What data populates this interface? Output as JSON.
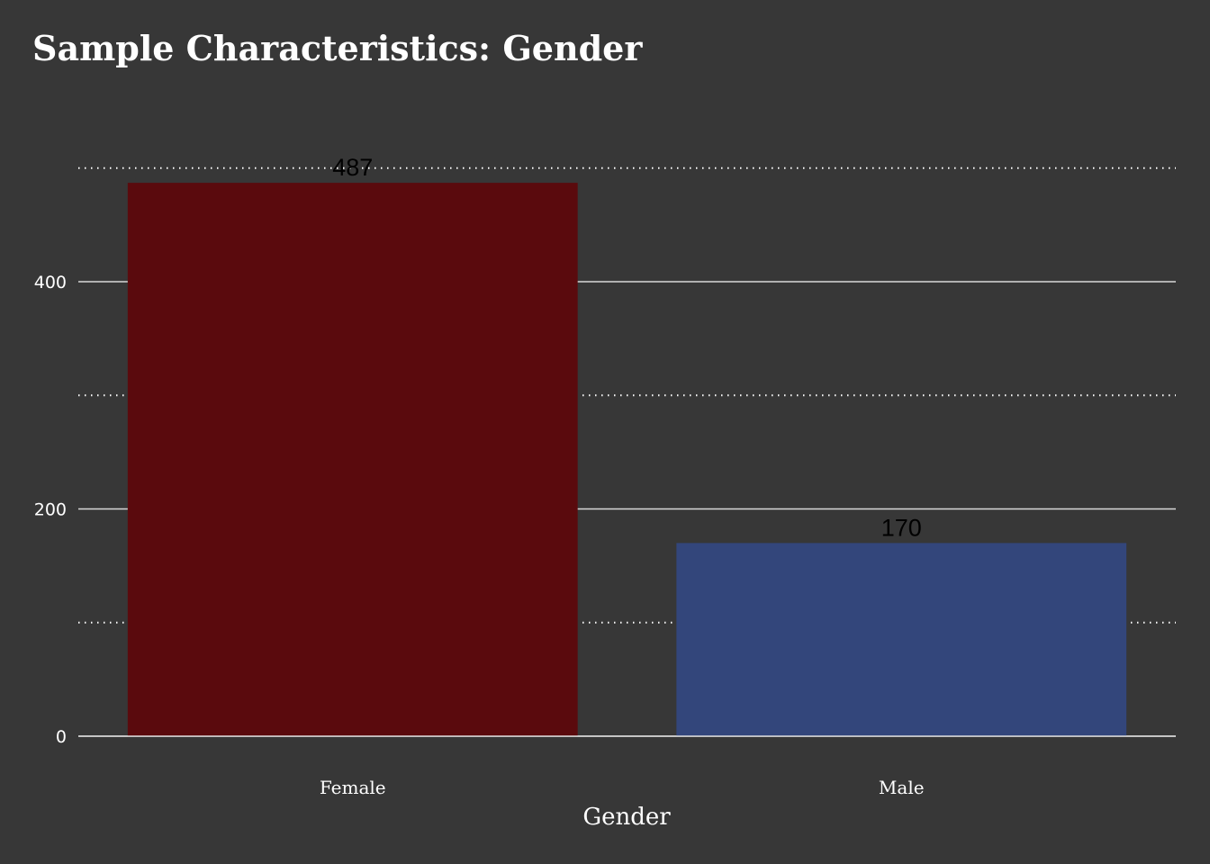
{
  "chart_data": {
    "type": "bar",
    "title": "Sample Characteristics: Gender",
    "xlabel": "Gender",
    "ylabel": "",
    "categories": [
      "Female",
      "Male"
    ],
    "values": [
      487,
      170
    ],
    "data_labels": [
      "487",
      "170"
    ],
    "ylim": [
      0,
      500
    ],
    "yticks": [
      0,
      200,
      400
    ],
    "yticklabels": [
      "0",
      "200",
      "400"
    ],
    "minor_gridlines": [
      100,
      300,
      500
    ],
    "grid": true,
    "legend": "none",
    "colors": {
      "background": "#373737",
      "bars": [
        "#5a0a0d",
        "#33467b"
      ],
      "major_grid": "#d9d9d9",
      "minor_grid": "#ffffff",
      "text": "#ffffff",
      "data_label": "#000000"
    }
  }
}
